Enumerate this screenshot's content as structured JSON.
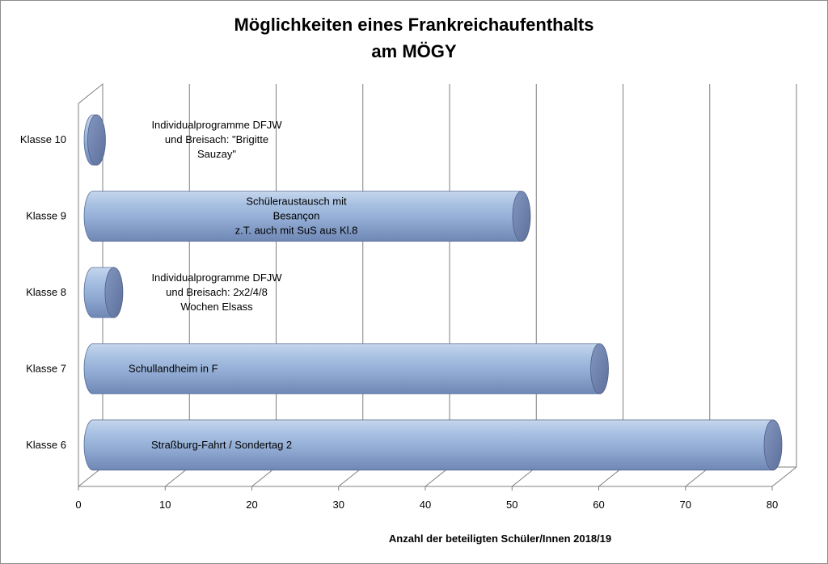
{
  "chart_data": {
    "type": "bar",
    "orientation": "horizontal",
    "title": "Möglichkeiten eines Frankreichaufenthalts am MÖGY",
    "title_lines": [
      "Möglichkeiten eines Frankreichaufenthalts",
      "am MÖGY"
    ],
    "xlabel": "Anzahl der  beteiligten Schüler/Innen 2018/19",
    "ylabel": "",
    "xlim": [
      0,
      80
    ],
    "xticks": [
      0,
      10,
      20,
      30,
      40,
      50,
      60,
      70,
      80
    ],
    "grid": true,
    "style": "3d-cylinder",
    "bar_color": "#95b3d7",
    "categories": [
      "Klasse 10",
      "Klasse 9",
      "Klasse 8",
      "Klasse 7",
      "Klasse 6"
    ],
    "values": [
      2,
      51,
      4,
      60,
      80
    ],
    "annotations": [
      [
        "Individualprogramme DFJW",
        "und Breisach: \"Brigitte",
        "Sauzay\""
      ],
      [
        "Schüleraustausch mit",
        "Besançon",
        "z.T. auch mit SuS aus Kl.8"
      ],
      [
        "Individualprogramme DFJW",
        "und Breisach: 2x2/4/8",
        "Wochen Elsass"
      ],
      [
        "Schullandheim in F"
      ],
      [
        "Straßburg-Fahrt / Sondertag 2"
      ]
    ]
  }
}
